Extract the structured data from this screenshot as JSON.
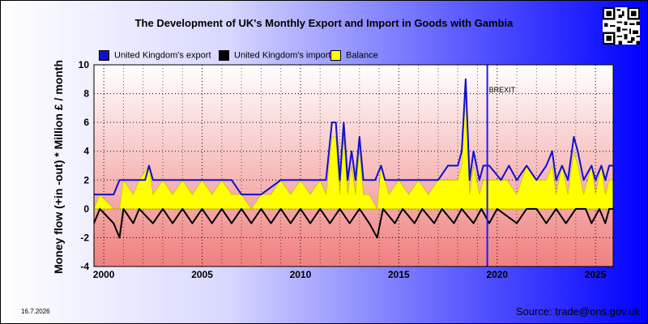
{
  "date_stamp": "16.7.2026",
  "source": "Source: trade@ons.gov.uk",
  "chart_data": {
    "type": "line",
    "title": "The Development of UK's Monthly Export and Import in Goods with Gambia",
    "ylabel": "Money flow (+in -out) * Million £ / month",
    "xlabel": "",
    "ylim": [
      -4,
      10
    ],
    "xlim": [
      1999.5,
      2025.9
    ],
    "yticks": [
      -4,
      -2,
      0,
      2,
      4,
      6,
      8,
      10
    ],
    "xticks": [
      2000,
      2005,
      2010,
      2015,
      2020,
      2025
    ],
    "grid": true,
    "legend_position": "top",
    "annotation": {
      "text": "BREXIT",
      "x": 2019.5
    },
    "colors": {
      "export": "#1010cc",
      "import": "#000000",
      "balance": "#ffff00",
      "brexit": "#1a1aff"
    },
    "series": [
      {
        "name": "United Kingdom's export",
        "key": "export",
        "points": [
          [
            1999.5,
            1
          ],
          [
            2000.5,
            1
          ],
          [
            2000.8,
            2
          ],
          [
            2001.8,
            2
          ],
          [
            2002.1,
            2
          ],
          [
            2002.3,
            3
          ],
          [
            2002.5,
            2
          ],
          [
            2004.0,
            2
          ],
          [
            2005.0,
            2
          ],
          [
            2006.0,
            2
          ],
          [
            2006.5,
            2
          ],
          [
            2007.0,
            1
          ],
          [
            2008.0,
            1
          ],
          [
            2009.0,
            2
          ],
          [
            2009.5,
            2
          ],
          [
            2010.3,
            2
          ],
          [
            2011.0,
            2
          ],
          [
            2011.3,
            2
          ],
          [
            2011.6,
            6
          ],
          [
            2011.8,
            6
          ],
          [
            2012.0,
            2
          ],
          [
            2012.2,
            6
          ],
          [
            2012.4,
            2
          ],
          [
            2012.6,
            4
          ],
          [
            2012.8,
            2
          ],
          [
            2013.0,
            5
          ],
          [
            2013.2,
            2
          ],
          [
            2013.5,
            2
          ],
          [
            2013.8,
            2
          ],
          [
            2014.1,
            3
          ],
          [
            2014.3,
            2
          ],
          [
            2015.0,
            2
          ],
          [
            2016.0,
            2
          ],
          [
            2016.5,
            2
          ],
          [
            2017.0,
            2
          ],
          [
            2017.5,
            3
          ],
          [
            2018.0,
            3
          ],
          [
            2018.2,
            4
          ],
          [
            2018.4,
            9
          ],
          [
            2018.6,
            2
          ],
          [
            2018.8,
            4
          ],
          [
            2019.1,
            2
          ],
          [
            2019.3,
            3
          ],
          [
            2019.6,
            3
          ],
          [
            2020.2,
            2
          ],
          [
            2020.6,
            3
          ],
          [
            2021.0,
            2
          ],
          [
            2021.5,
            3
          ],
          [
            2022.0,
            2
          ],
          [
            2022.5,
            3
          ],
          [
            2022.8,
            4
          ],
          [
            2023.0,
            2
          ],
          [
            2023.3,
            3
          ],
          [
            2023.6,
            2
          ],
          [
            2023.9,
            5
          ],
          [
            2024.1,
            4
          ],
          [
            2024.4,
            2
          ],
          [
            2024.8,
            3
          ],
          [
            2025.0,
            2
          ],
          [
            2025.3,
            3
          ],
          [
            2025.5,
            2
          ],
          [
            2025.7,
            3
          ],
          [
            2025.9,
            3
          ]
        ]
      },
      {
        "name": "United Kingdom's import",
        "key": "import",
        "points": [
          [
            1999.5,
            -1
          ],
          [
            1999.8,
            0
          ],
          [
            2000.5,
            -1
          ],
          [
            2000.8,
            -2
          ],
          [
            2001.0,
            0
          ],
          [
            2001.5,
            -1
          ],
          [
            2001.8,
            0
          ],
          [
            2002.5,
            -1
          ],
          [
            2003.0,
            0
          ],
          [
            2003.5,
            -1
          ],
          [
            2004.0,
            0
          ],
          [
            2004.5,
            -1
          ],
          [
            2005.0,
            0
          ],
          [
            2005.5,
            -1
          ],
          [
            2006.0,
            0
          ],
          [
            2006.5,
            -1
          ],
          [
            2007.0,
            0
          ],
          [
            2007.5,
            -1
          ],
          [
            2008.0,
            0
          ],
          [
            2008.5,
            -1
          ],
          [
            2009.0,
            0
          ],
          [
            2009.5,
            -1
          ],
          [
            2010.0,
            0
          ],
          [
            2010.5,
            -1
          ],
          [
            2011.0,
            0
          ],
          [
            2011.5,
            -1
          ],
          [
            2012.0,
            0
          ],
          [
            2012.5,
            -1
          ],
          [
            2013.0,
            0
          ],
          [
            2013.5,
            -1
          ],
          [
            2013.9,
            -2
          ],
          [
            2014.2,
            0
          ],
          [
            2014.8,
            -1
          ],
          [
            2015.2,
            0
          ],
          [
            2015.8,
            -1
          ],
          [
            2016.2,
            0
          ],
          [
            2016.8,
            -1
          ],
          [
            2017.2,
            0
          ],
          [
            2017.8,
            -1
          ],
          [
            2018.2,
            0
          ],
          [
            2018.8,
            -1
          ],
          [
            2019.2,
            0
          ],
          [
            2019.6,
            -1
          ],
          [
            2020.0,
            0
          ],
          [
            2021.0,
            -1
          ],
          [
            2021.5,
            0
          ],
          [
            2022.0,
            0
          ],
          [
            2022.5,
            -1
          ],
          [
            2023.0,
            0
          ],
          [
            2023.5,
            -1
          ],
          [
            2024.0,
            0
          ],
          [
            2024.5,
            0
          ],
          [
            2024.8,
            -1
          ],
          [
            2025.2,
            0
          ],
          [
            2025.5,
            -1
          ],
          [
            2025.7,
            0
          ],
          [
            2025.9,
            0
          ]
        ]
      },
      {
        "name": "Balance",
        "key": "balance",
        "points": [
          [
            1999.5,
            0
          ],
          [
            1999.8,
            1
          ],
          [
            2000.5,
            0
          ],
          [
            2000.8,
            0
          ],
          [
            2001.0,
            2
          ],
          [
            2001.5,
            1
          ],
          [
            2001.8,
            2
          ],
          [
            2002.3,
            3
          ],
          [
            2002.5,
            1
          ],
          [
            2003.0,
            2
          ],
          [
            2003.5,
            1
          ],
          [
            2004.0,
            2
          ],
          [
            2004.5,
            1
          ],
          [
            2005.0,
            2
          ],
          [
            2005.5,
            1
          ],
          [
            2006.0,
            2
          ],
          [
            2006.5,
            1
          ],
          [
            2007.0,
            1
          ],
          [
            2007.5,
            0
          ],
          [
            2008.0,
            1
          ],
          [
            2008.5,
            1
          ],
          [
            2009.0,
            2
          ],
          [
            2009.5,
            1
          ],
          [
            2010.0,
            2
          ],
          [
            2010.5,
            1
          ],
          [
            2011.0,
            2
          ],
          [
            2011.3,
            1
          ],
          [
            2011.6,
            5
          ],
          [
            2011.8,
            5
          ],
          [
            2012.0,
            1
          ],
          [
            2012.2,
            5
          ],
          [
            2012.4,
            1
          ],
          [
            2012.6,
            3
          ],
          [
            2012.8,
            1
          ],
          [
            2013.0,
            4
          ],
          [
            2013.2,
            1
          ],
          [
            2013.5,
            1
          ],
          [
            2013.9,
            0
          ],
          [
            2014.1,
            3
          ],
          [
            2014.5,
            1
          ],
          [
            2015.0,
            2
          ],
          [
            2015.5,
            1
          ],
          [
            2016.0,
            2
          ],
          [
            2016.5,
            1
          ],
          [
            2017.0,
            2
          ],
          [
            2017.5,
            2
          ],
          [
            2018.0,
            2
          ],
          [
            2018.2,
            3
          ],
          [
            2018.4,
            8
          ],
          [
            2018.6,
            1
          ],
          [
            2018.8,
            3
          ],
          [
            2019.1,
            1
          ],
          [
            2019.3,
            2
          ],
          [
            2019.6,
            2
          ],
          [
            2020.0,
            2
          ],
          [
            2020.5,
            2
          ],
          [
            2021.0,
            1
          ],
          [
            2021.5,
            3
          ],
          [
            2022.0,
            2
          ],
          [
            2022.5,
            2
          ],
          [
            2022.8,
            3
          ],
          [
            2023.0,
            1
          ],
          [
            2023.3,
            3
          ],
          [
            2023.6,
            1
          ],
          [
            2023.9,
            4
          ],
          [
            2024.1,
            3
          ],
          [
            2024.4,
            1
          ],
          [
            2024.8,
            3
          ],
          [
            2025.0,
            1
          ],
          [
            2025.3,
            3
          ],
          [
            2025.5,
            1
          ],
          [
            2025.7,
            2
          ],
          [
            2025.9,
            2
          ]
        ]
      }
    ]
  }
}
